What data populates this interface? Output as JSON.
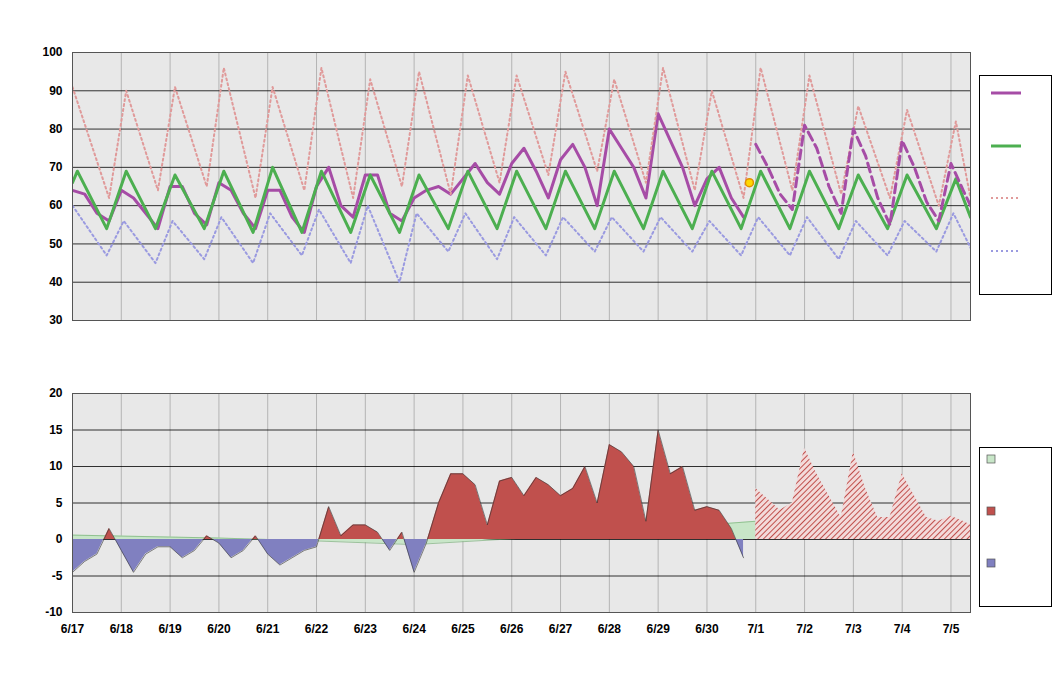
{
  "chart_data": [
    {
      "type": "line",
      "xlim": [
        0,
        18.4
      ],
      "ylim": [
        30,
        100
      ],
      "xticks": [
        {
          "value": 0,
          "label": "6/17"
        },
        {
          "value": 1,
          "label": "6/18"
        },
        {
          "value": 2,
          "label": "6/19"
        },
        {
          "value": 3,
          "label": "6/20"
        },
        {
          "value": 4,
          "label": "6/21"
        },
        {
          "value": 5,
          "label": "6/22"
        },
        {
          "value": 6,
          "label": "6/23"
        },
        {
          "value": 7,
          "label": "6/24"
        },
        {
          "value": 8,
          "label": "6/25"
        },
        {
          "value": 9,
          "label": "6/26"
        },
        {
          "value": 10,
          "label": "6/27"
        },
        {
          "value": 11,
          "label": "6/28"
        },
        {
          "value": 12,
          "label": "6/29"
        },
        {
          "value": 13,
          "label": "6/30"
        },
        {
          "value": 14,
          "label": "7/1"
        },
        {
          "value": 15,
          "label": "7/2"
        },
        {
          "value": 16,
          "label": "7/3"
        },
        {
          "value": 17,
          "label": "7/4"
        },
        {
          "value": 18,
          "label": "7/5"
        }
      ],
      "yticks": [
        30,
        40,
        50,
        60,
        70,
        80,
        90,
        100
      ],
      "grid": true,
      "legend": "right",
      "tick_labels": "y",
      "series": [
        {
          "color": "#a64ca6",
          "line_style": "solid",
          "x": [
            0,
            0.25,
            0.5,
            0.75,
            1,
            1.25,
            1.5,
            1.75,
            2,
            2.25,
            2.5,
            2.75,
            3,
            3.25,
            3.5,
            3.75,
            4,
            4.25,
            4.5,
            4.75,
            5,
            5.25,
            5.5,
            5.75,
            6,
            6.25,
            6.5,
            6.75,
            7,
            7.25,
            7.5,
            7.75,
            8,
            8.25,
            8.5,
            8.75,
            9,
            9.25,
            9.5,
            9.75,
            10,
            10.25,
            10.5,
            10.75,
            11,
            11.25,
            11.5,
            11.75,
            12,
            12.25,
            12.5,
            12.75,
            13,
            13.25,
            13.5,
            13.75
          ],
          "values": [
            64,
            63,
            58,
            56,
            64,
            62,
            58,
            54,
            65,
            65,
            58,
            55,
            66,
            64,
            58,
            54,
            64,
            64,
            57,
            53,
            65,
            70,
            60,
            57,
            68,
            68,
            58,
            56,
            62,
            64,
            65,
            63,
            67,
            71,
            66,
            63,
            71,
            75,
            69,
            62,
            72,
            76,
            70,
            60,
            80,
            75,
            70,
            62,
            84,
            77,
            70,
            60,
            67,
            70,
            62,
            57
          ]
        },
        {
          "color": "#4caf50",
          "line_style": "solid",
          "x": [
            0,
            0.1,
            0.7,
            1.1,
            1.7,
            2.1,
            2.7,
            3.1,
            3.7,
            4.1,
            4.7,
            5.1,
            5.7,
            6.1,
            6.7,
            7.1,
            7.7,
            8.1,
            8.7,
            9.1,
            9.7,
            10.1,
            10.7,
            11.1,
            11.7,
            12.1,
            12.7,
            13.1,
            13.7,
            14.1,
            14.7,
            15.1,
            15.7,
            16.1,
            16.7,
            17.1,
            17.7,
            18.1,
            18.4
          ],
          "values": [
            66,
            69,
            54,
            69,
            54,
            68,
            54,
            69,
            53,
            70,
            53,
            69,
            53,
            68,
            53,
            68,
            54,
            69,
            54,
            69,
            54,
            69,
            54,
            69,
            54,
            69,
            54,
            69,
            54,
            69,
            54,
            69,
            54,
            68,
            54,
            68,
            54,
            67,
            57
          ]
        },
        {
          "color": "#e09a9a",
          "line_style": "dotted",
          "x": [
            0,
            0.75,
            1.1,
            1.75,
            2.1,
            2.75,
            3.1,
            3.75,
            4.1,
            4.75,
            5.1,
            5.75,
            6.1,
            6.75,
            7.1,
            7.75,
            8.1,
            8.75,
            9.1,
            9.75,
            10.1,
            10.75,
            11.1,
            11.75,
            12.1,
            12.75,
            13.1,
            13.75,
            14.1,
            14.75,
            15.1,
            15.75,
            16.1,
            16.75,
            17.1,
            17.75,
            18.1,
            18.4
          ],
          "values": [
            91,
            62,
            90,
            64,
            91,
            65,
            96,
            62,
            91,
            64,
            96,
            62,
            93,
            65,
            95,
            63,
            94,
            66,
            94,
            68,
            95,
            69,
            93,
            66,
            96,
            64,
            90,
            62,
            96,
            64,
            94,
            63,
            86,
            62,
            85,
            60,
            82,
            62
          ]
        },
        {
          "color": "#9a9ae0",
          "line_style": "dotted",
          "x": [
            0,
            0.7,
            1.05,
            1.7,
            2.05,
            2.7,
            3.05,
            3.7,
            4.05,
            4.7,
            5.05,
            5.7,
            6.05,
            6.7,
            7.05,
            7.7,
            8.05,
            8.7,
            9.05,
            9.7,
            10.05,
            10.7,
            11.05,
            11.7,
            12.05,
            12.7,
            13.05,
            13.7,
            14.05,
            14.7,
            15.05,
            15.7,
            16.05,
            16.7,
            17.05,
            17.7,
            18.05,
            18.4
          ],
          "values": [
            60,
            47,
            56,
            45,
            56,
            46,
            57,
            45,
            58,
            47,
            59,
            45,
            60,
            40,
            58,
            48,
            58,
            46,
            57,
            47,
            57,
            48,
            57,
            48,
            57,
            48,
            56,
            47,
            57,
            47,
            57,
            46,
            56,
            47,
            56,
            48,
            58,
            49
          ]
        },
        {
          "color": "#a64ca6",
          "line_style": "dashed",
          "x": [
            14,
            14.25,
            14.5,
            14.75,
            15,
            15.25,
            15.5,
            15.75,
            16,
            16.25,
            16.5,
            16.75,
            17,
            17.25,
            17.5,
            17.75,
            18,
            18.25,
            18.4
          ],
          "values": [
            76,
            70,
            63,
            59,
            81,
            75,
            65,
            58,
            80,
            73,
            62,
            55,
            77,
            70,
            61,
            56,
            71,
            64,
            60
          ]
        },
        {
          "type": "scatter",
          "color": "#ffd700",
          "marker": "circle",
          "x": [
            13.87
          ],
          "values": [
            66
          ]
        }
      ]
    },
    {
      "type": "area",
      "xlim": [
        0,
        18.4
      ],
      "ylim": [
        -10,
        20
      ],
      "xticks": [
        {
          "value": 0,
          "label": "6/17"
        },
        {
          "value": 1,
          "label": "6/18"
        },
        {
          "value": 2,
          "label": "6/19"
        },
        {
          "value": 3,
          "label": "6/20"
        },
        {
          "value": 4,
          "label": "6/21"
        },
        {
          "value": 5,
          "label": "6/22"
        },
        {
          "value": 6,
          "label": "6/23"
        },
        {
          "value": 7,
          "label": "6/24"
        },
        {
          "value": 8,
          "label": "6/25"
        },
        {
          "value": 9,
          "label": "6/26"
        },
        {
          "value": 10,
          "label": "6/27"
        },
        {
          "value": 11,
          "label": "6/28"
        },
        {
          "value": 12,
          "label": "6/29"
        },
        {
          "value": 13,
          "label": "6/30"
        },
        {
          "value": 14,
          "label": "7/1"
        },
        {
          "value": 15,
          "label": "7/2"
        },
        {
          "value": 16,
          "label": "7/3"
        },
        {
          "value": 17,
          "label": "7/4"
        },
        {
          "value": 18,
          "label": "7/5"
        }
      ],
      "yticks": [
        -10,
        -5,
        0,
        5,
        10,
        15,
        20
      ],
      "grid": true,
      "legend": "right",
      "series": [
        {
          "color": "#c8e6c8",
          "x": [
            0,
            3,
            5,
            7,
            8,
            10,
            12,
            13,
            14
          ],
          "values": [
            0.6,
            0.2,
            -0.2,
            -0.7,
            -0.3,
            0.5,
            1.5,
            2,
            2.5
          ]
        },
        {
          "colors": [
            "#c0504d",
            "#8080c0"
          ],
          "x": [
            0,
            0.25,
            0.5,
            0.75,
            1,
            1.25,
            1.5,
            1.75,
            2,
            2.25,
            2.5,
            2.75,
            3,
            3.25,
            3.5,
            3.75,
            4,
            4.25,
            4.5,
            4.75,
            5,
            5.25,
            5.5,
            5.75,
            6,
            6.25,
            6.5,
            6.75,
            7,
            7.25,
            7.5,
            7.75,
            8,
            8.25,
            8.5,
            8.75,
            9,
            9.25,
            9.5,
            9.75,
            10,
            10.25,
            10.5,
            10.75,
            11,
            11.25,
            11.5,
            11.75,
            12,
            12.25,
            12.5,
            12.75,
            13,
            13.25,
            13.5,
            13.75
          ],
          "values": [
            -4.5,
            -3,
            -2,
            1.5,
            -1.5,
            -4.5,
            -2,
            -1,
            -1,
            -2.5,
            -1.5,
            0.5,
            -0.5,
            -2.5,
            -1.5,
            0.5,
            -2,
            -3.5,
            -2.5,
            -1.5,
            -1,
            4.5,
            0.5,
            2,
            2,
            1,
            -1.5,
            1,
            -4.5,
            -0.5,
            5,
            9,
            9,
            7.5,
            2,
            8,
            8.5,
            6,
            8.5,
            7.5,
            6,
            7,
            10,
            5,
            13,
            12,
            10,
            2.5,
            15,
            9,
            10,
            4,
            4.5,
            4,
            1.5,
            -2.5
          ]
        },
        {
          "color": "#c0504d",
          "line_style": "hatched",
          "x": [
            14,
            14.25,
            14.5,
            14.75,
            15,
            15.25,
            15.5,
            15.75,
            16,
            16.25,
            16.5,
            16.75,
            17,
            17.25,
            17.5,
            17.75,
            18,
            18.25,
            18.4
          ],
          "values": [
            7,
            5.5,
            4,
            5,
            12.5,
            9,
            6,
            3,
            12,
            7,
            3,
            3,
            9,
            6,
            3,
            2.5,
            3.2,
            2.5,
            2
          ]
        }
      ]
    }
  ]
}
